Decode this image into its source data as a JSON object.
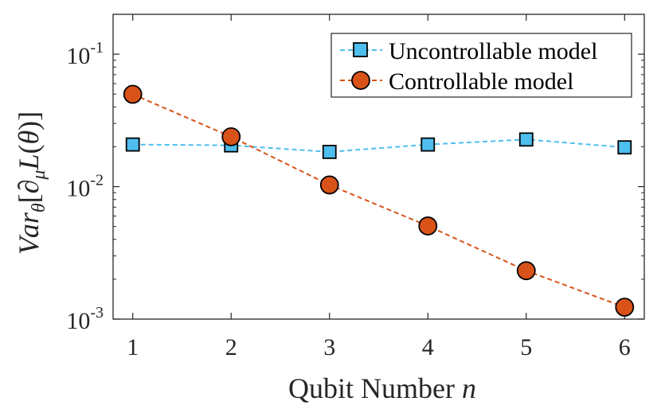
{
  "chart_data": {
    "type": "line",
    "yscale": "log",
    "x": [
      1,
      2,
      3,
      4,
      5,
      6
    ],
    "xlim": [
      0.8,
      6.2
    ],
    "ylim": [
      0.001,
      0.2
    ],
    "xticks": [
      "1",
      "2",
      "3",
      "4",
      "5",
      "6"
    ],
    "yticks": [
      {
        "value": 0.1,
        "base": "10",
        "exp": "-1"
      },
      {
        "value": 0.01,
        "base": "10",
        "exp": "-2"
      },
      {
        "value": 0.001,
        "base": "10",
        "exp": "-3"
      }
    ],
    "xlabel": {
      "text": "Qubit Number ",
      "var": "n"
    },
    "ylabel": "Var_θ[∂_μ L(θ)]",
    "series": [
      {
        "name": "Uncontrollable model",
        "marker": "square",
        "color": "#4dbeee",
        "values": [
          0.0208,
          0.0205,
          0.0183,
          0.0208,
          0.0227,
          0.0198
        ]
      },
      {
        "name": "Controllable model",
        "marker": "circle",
        "color": "#d95319",
        "values": [
          0.0498,
          0.0238,
          0.0103,
          0.00505,
          0.00232,
          0.00123
        ]
      }
    ],
    "legend_position": "top-right"
  }
}
